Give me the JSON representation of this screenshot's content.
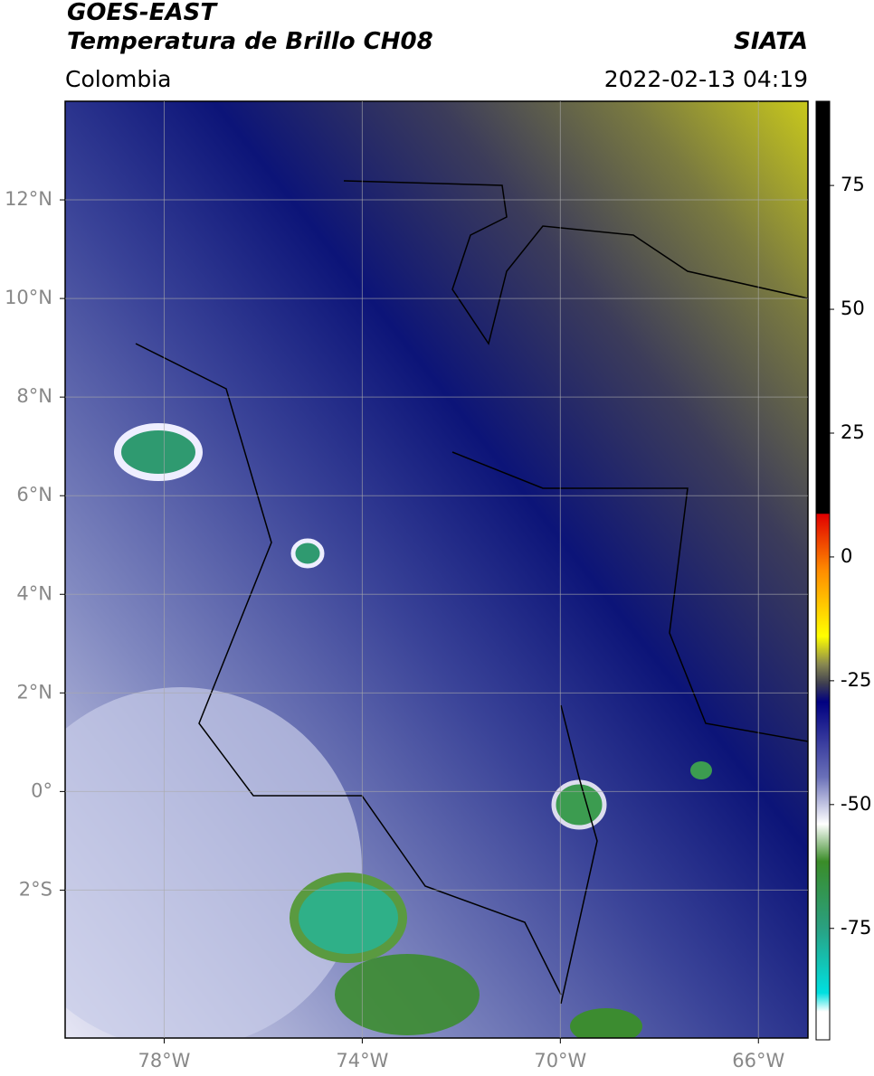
{
  "header": {
    "title": "GOES-EAST",
    "subtitle": "Temperatura de Brillo CH08",
    "region": "Colombia",
    "source": "SIATA",
    "datetime": "2022-02-13 04:19"
  },
  "map": {
    "lon_range": [
      -80,
      -65
    ],
    "lat_range": [
      -5,
      14
    ],
    "lon_ticks": [
      {
        "value": -78,
        "label": "78°W"
      },
      {
        "value": -74,
        "label": "74°W"
      },
      {
        "value": -70,
        "label": "70°W"
      },
      {
        "value": -66,
        "label": "66°W"
      }
    ],
    "lat_ticks": [
      {
        "value": 12,
        "label": "12°N"
      },
      {
        "value": 10,
        "label": "10°N"
      },
      {
        "value": 8,
        "label": "8°N"
      },
      {
        "value": 6,
        "label": "6°N"
      },
      {
        "value": 4,
        "label": "4°N"
      },
      {
        "value": 2,
        "label": "2°N"
      },
      {
        "value": 0,
        "label": "0°"
      },
      {
        "value": -2,
        "label": "2°S"
      }
    ]
  },
  "colorbar": {
    "range": [
      -97.5,
      92
    ],
    "ticks": [
      75,
      50,
      25,
      0,
      -25,
      -50,
      -75
    ]
  }
}
